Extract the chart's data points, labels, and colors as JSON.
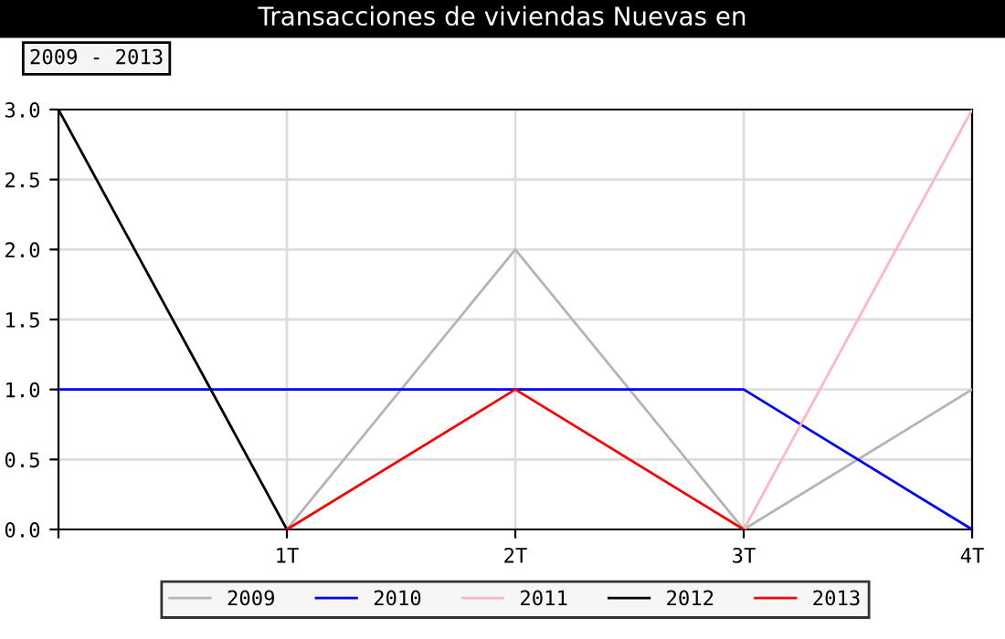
{
  "chart_data": {
    "type": "line",
    "title": "Transacciones de viviendas Nuevas en",
    "subtitle": "2009 - 2013",
    "categories": [
      null,
      "1T",
      "2T",
      "3T",
      "4T"
    ],
    "series": [
      {
        "name": "2009",
        "color": "#b4b4b4",
        "values": [
          null,
          0,
          2,
          0,
          1
        ]
      },
      {
        "name": "2010",
        "color": "#0000ff",
        "values": [
          1,
          1,
          1,
          1,
          0
        ]
      },
      {
        "name": "2011",
        "color": "#ffb6c1",
        "values": [
          null,
          null,
          null,
          0,
          3
        ]
      },
      {
        "name": "2012",
        "color": "#000000",
        "values": [
          3,
          0,
          null,
          null,
          null
        ]
      },
      {
        "name": "2013",
        "color": "#ff0000",
        "values": [
          null,
          0,
          1,
          0,
          null
        ]
      }
    ],
    "ylim": [
      0,
      3
    ],
    "yticks": [
      {
        "value": 0,
        "label": "0.0"
      },
      {
        "value": 0.5,
        "label": "0.5"
      },
      {
        "value": 1,
        "label": "1.0"
      },
      {
        "value": 1.5,
        "label": "1.5"
      },
      {
        "value": 2,
        "label": "2.0"
      },
      {
        "value": 2.5,
        "label": "2.5"
      },
      {
        "value": 3,
        "label": "3.0"
      }
    ],
    "grid": true,
    "legend": "bottom",
    "marker": "none",
    "line_style": "solid"
  }
}
